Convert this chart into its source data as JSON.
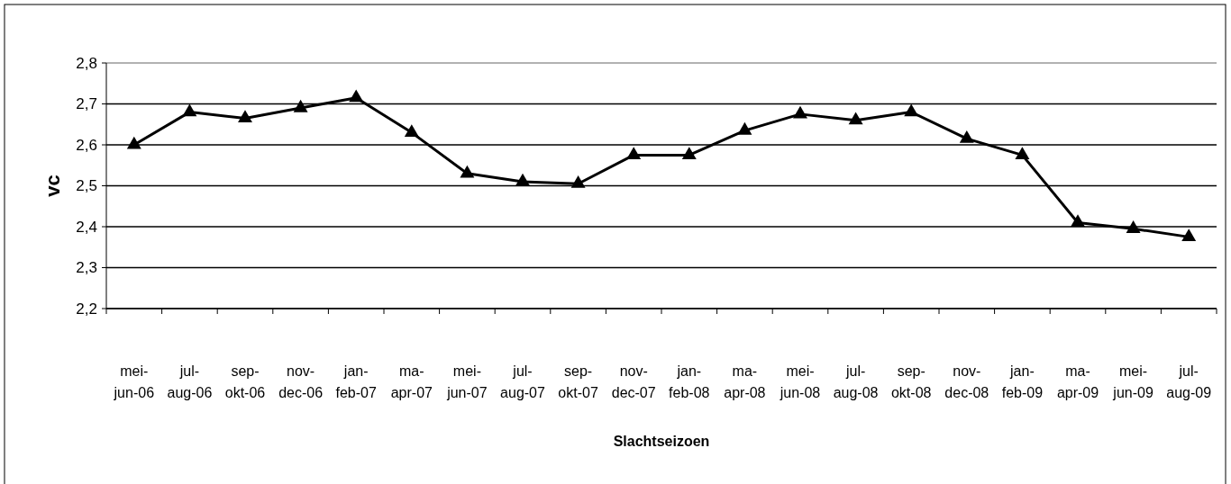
{
  "chart_data": {
    "type": "line",
    "xlabel": "Slachtseizoen",
    "ylabel": "vc",
    "categories": [
      "mei-jun-06",
      "jul-aug-06",
      "sep-okt-06",
      "nov-dec-06",
      "jan-feb-07",
      "ma-apr-07",
      "mei-jun-07",
      "jul-aug-07",
      "sep-okt-07",
      "nov-dec-07",
      "jan-feb-08",
      "ma-apr-08",
      "mei-jun-08",
      "jul-aug-08",
      "sep-okt-08",
      "nov-dec-08",
      "jan-feb-09",
      "ma-apr-09",
      "mei-jun-09",
      "jul-aug-09"
    ],
    "series": [
      {
        "color": "#000000",
        "values": [
          2.6,
          2.68,
          2.665,
          2.69,
          2.715,
          2.63,
          2.53,
          2.51,
          2.505,
          2.575,
          2.575,
          2.635,
          2.675,
          2.66,
          2.68,
          2.615,
          2.575,
          2.41,
          2.395,
          2.375
        ]
      }
    ],
    "ylim": [
      2.2,
      2.8
    ],
    "yticks": [
      {
        "value": 2.2,
        "label": "2,2"
      },
      {
        "value": 2.3,
        "label": "2,3"
      },
      {
        "value": 2.4,
        "label": "2,4"
      },
      {
        "value": 2.5,
        "label": "2,5"
      },
      {
        "value": 2.6,
        "label": "2,6"
      },
      {
        "value": 2.7,
        "label": "2,7"
      },
      {
        "value": 2.8,
        "label": "2,8"
      }
    ],
    "grid": "y",
    "marker": "triangle",
    "line_style": "solid"
  }
}
